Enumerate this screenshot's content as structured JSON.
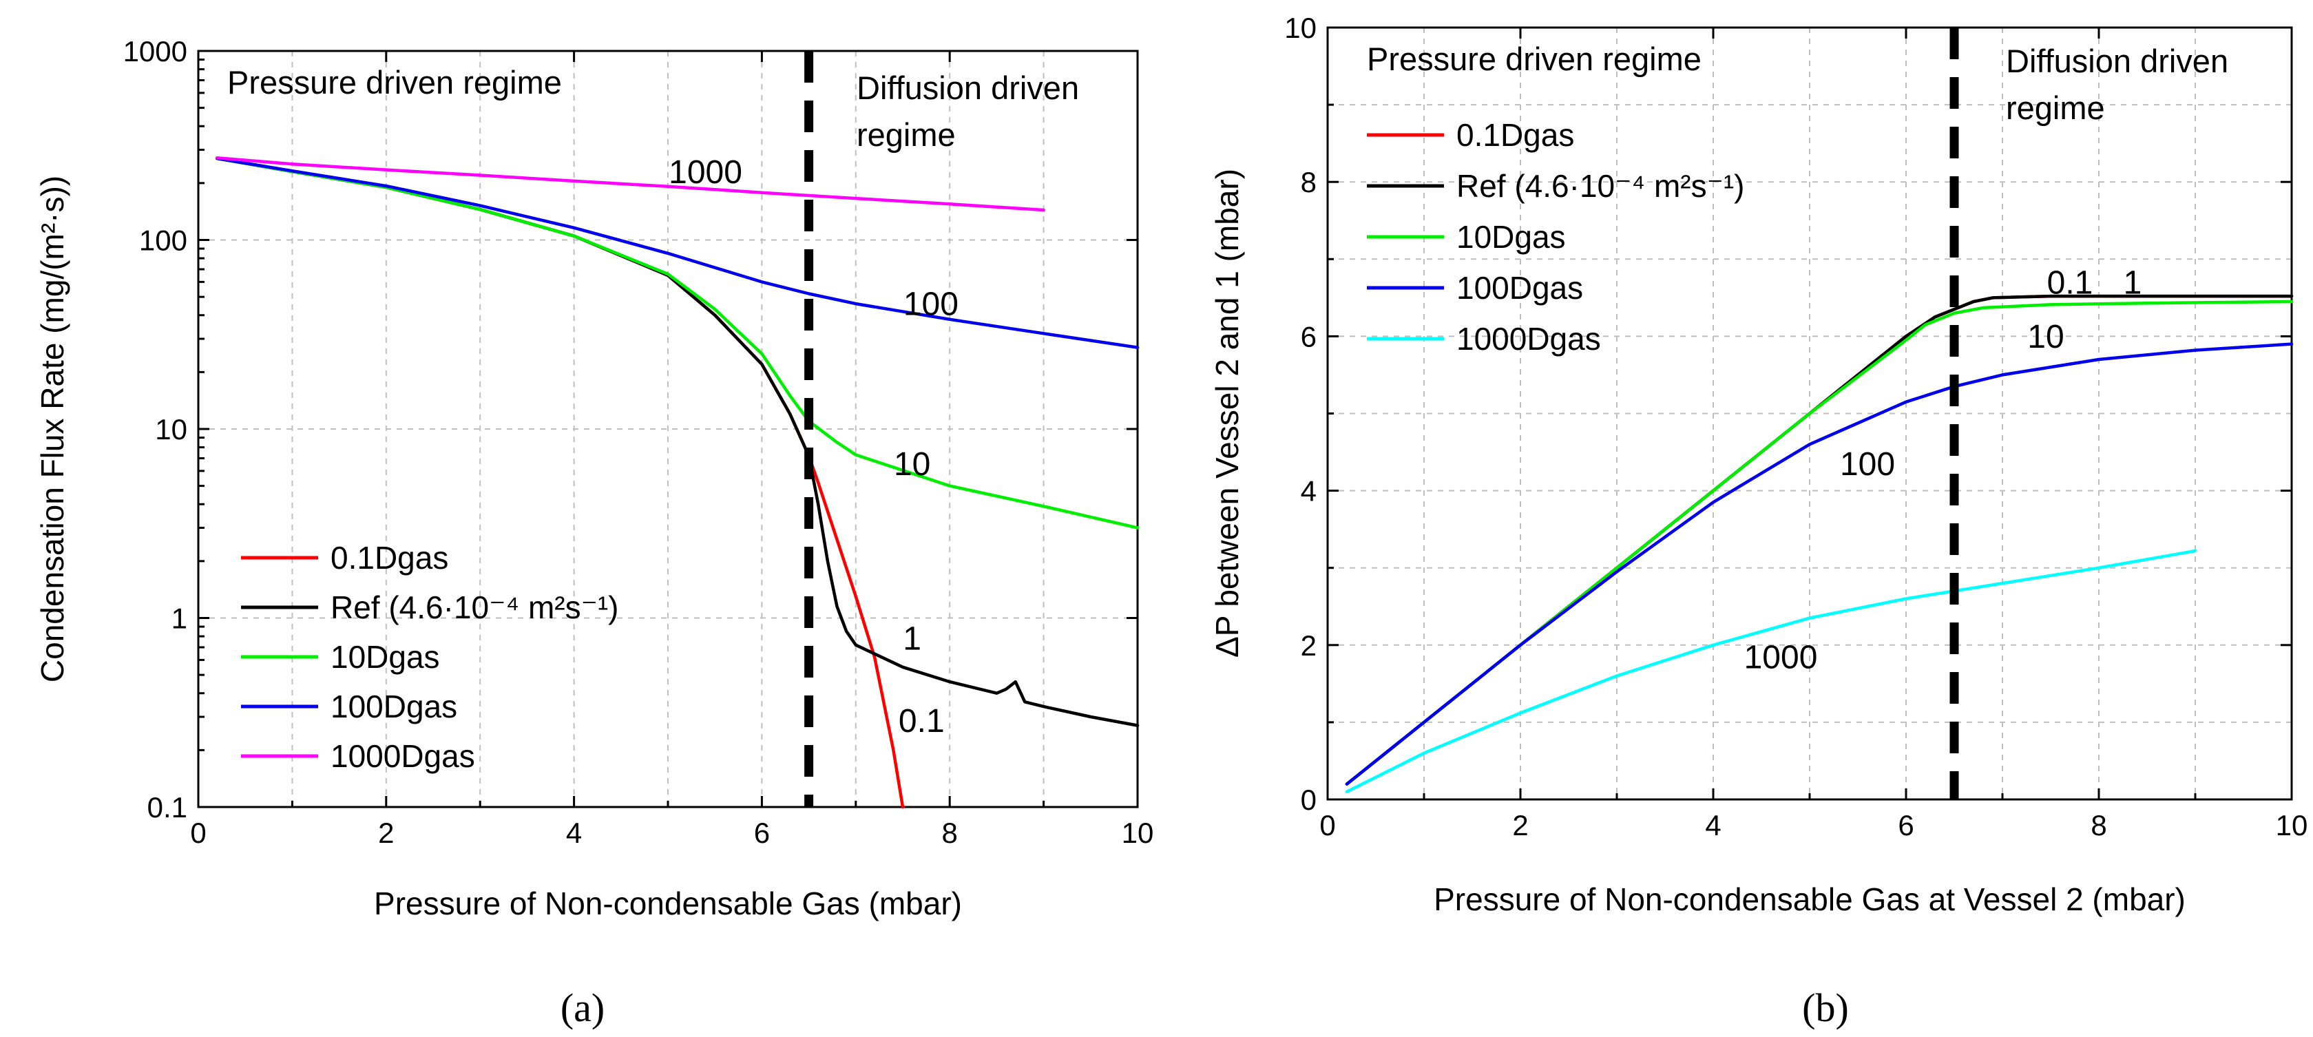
{
  "chart_data": [
    {
      "type": "line",
      "panel_label": "(a)",
      "xlabel": "Pressure of Non-condensable Gas (mbar)",
      "ylabel": "Condensation Flux Rate (mg/(m²·s))",
      "xlim": [
        0,
        10
      ],
      "ylim": [
        0.1,
        1000
      ],
      "yscale": "log",
      "x_ticks": [
        "0",
        "2",
        "4",
        "6",
        "8",
        "10"
      ],
      "y_ticks": [
        "0.1",
        "1",
        "10",
        "100",
        "1000"
      ],
      "grid": true,
      "divider_x": 6.5,
      "regime_left": "Pressure driven regime",
      "regime_right_line1": "Diffusion driven",
      "regime_right_line2": "regime",
      "legend_position": "bottom-left",
      "series": [
        {
          "name": "0.1Dgas",
          "color": "#ff0000",
          "points": [
            [
              0.2,
              270
            ],
            [
              1,
              230
            ],
            [
              2,
              190
            ],
            [
              3,
              145
            ],
            [
              4,
              105
            ],
            [
              5,
              65
            ],
            [
              5.5,
              40
            ],
            [
              6,
              22
            ],
            [
              6.3,
              12
            ],
            [
              6.5,
              7.2
            ],
            [
              6.6,
              5.2
            ],
            [
              6.8,
              2.6
            ],
            [
              7.0,
              1.3
            ],
            [
              7.2,
              0.62
            ],
            [
              7.4,
              0.2
            ],
            [
              7.5,
              0.1
            ]
          ]
        },
        {
          "name": "Ref (4.6·10⁻⁴ m²s⁻¹)",
          "color": "#000000",
          "points": [
            [
              0.2,
              270
            ],
            [
              1,
              230
            ],
            [
              2,
              190
            ],
            [
              3,
              145
            ],
            [
              4,
              105
            ],
            [
              5,
              65
            ],
            [
              5.5,
              40
            ],
            [
              6,
              22
            ],
            [
              6.3,
              12
            ],
            [
              6.5,
              7.2
            ],
            [
              6.6,
              4
            ],
            [
              6.7,
              2
            ],
            [
              6.8,
              1.15
            ],
            [
              6.9,
              0.85
            ],
            [
              7.0,
              0.72
            ],
            [
              7.5,
              0.55
            ],
            [
              8.0,
              0.46
            ],
            [
              8.5,
              0.4
            ],
            [
              8.6,
              0.42
            ],
            [
              8.7,
              0.46
            ],
            [
              8.8,
              0.36
            ],
            [
              9.0,
              0.34
            ],
            [
              9.5,
              0.3
            ],
            [
              10,
              0.27
            ]
          ]
        },
        {
          "name": "10Dgas",
          "color": "#00ee00",
          "points": [
            [
              0.2,
              270
            ],
            [
              1,
              230
            ],
            [
              2,
              190
            ],
            [
              3,
              145
            ],
            [
              4,
              105
            ],
            [
              5,
              66
            ],
            [
              5.5,
              43
            ],
            [
              6,
              25
            ],
            [
              6.3,
              15
            ],
            [
              6.5,
              11
            ],
            [
              6.8,
              8.5
            ],
            [
              7.0,
              7.3
            ],
            [
              8,
              5.0
            ],
            [
              9,
              3.9
            ],
            [
              10,
              3.0
            ]
          ]
        },
        {
          "name": "100Dgas",
          "color": "#0000ee",
          "points": [
            [
              0.2,
              270
            ],
            [
              1,
              232
            ],
            [
              2,
              193
            ],
            [
              3,
              152
            ],
            [
              4,
              116
            ],
            [
              5,
              85
            ],
            [
              6,
              60
            ],
            [
              6.5,
              52
            ],
            [
              7,
              46
            ],
            [
              8,
              38
            ],
            [
              9,
              32
            ],
            [
              10,
              27
            ]
          ]
        },
        {
          "name": "1000Dgas",
          "color": "#ff00ff",
          "points": [
            [
              0.2,
              272
            ],
            [
              1,
              252
            ],
            [
              2,
              235
            ],
            [
              3,
              220
            ],
            [
              4,
              205
            ],
            [
              5,
              192
            ],
            [
              6,
              178
            ],
            [
              7,
              166
            ],
            [
              8,
              155
            ],
            [
              9,
              144
            ]
          ]
        }
      ],
      "annotations": [
        {
          "text": "1000",
          "x": 5.4,
          "y": 200
        },
        {
          "text": "100",
          "x": 7.8,
          "y": 40
        },
        {
          "text": "10",
          "x": 7.6,
          "y": 5.7
        },
        {
          "text": "1",
          "x": 7.6,
          "y": 0.68
        },
        {
          "text": "0.1",
          "x": 7.7,
          "y": 0.25
        }
      ]
    },
    {
      "type": "line",
      "panel_label": "(b)",
      "xlabel": "Pressure of Non-condensable Gas at Vessel 2 (mbar)",
      "ylabel": "ΔP between Vessel 2 and 1 (mbar)",
      "xlim": [
        0,
        10
      ],
      "ylim": [
        0,
        10
      ],
      "yscale": "linear",
      "x_ticks": [
        "0",
        "2",
        "4",
        "6",
        "8",
        "10"
      ],
      "y_ticks": [
        "0",
        "2",
        "4",
        "6",
        "8",
        "10"
      ],
      "grid": true,
      "divider_x": 6.5,
      "regime_left": "Pressure driven regime",
      "regime_right_line1": "Diffusion driven",
      "regime_right_line2": "regime",
      "legend_position": "top-left",
      "series": [
        {
          "name": "0.1Dgas",
          "color": "#ff0000",
          "points": [
            [
              0.2,
              0.2
            ],
            [
              1,
              1
            ],
            [
              2,
              2
            ],
            [
              3,
              3
            ],
            [
              4,
              4
            ],
            [
              5,
              5
            ],
            [
              6,
              6
            ],
            [
              6.3,
              6.25
            ],
            [
              6.5,
              6.35
            ],
            [
              6.7,
              6.45
            ],
            [
              6.9,
              6.5
            ],
            [
              7.5,
              6.52
            ],
            [
              8.5,
              6.52
            ],
            [
              10,
              6.52
            ]
          ]
        },
        {
          "name": "Ref (4.6·10⁻⁴ m²s⁻¹)",
          "color": "#000000",
          "points": [
            [
              0.2,
              0.2
            ],
            [
              1,
              1
            ],
            [
              2,
              2
            ],
            [
              3,
              3
            ],
            [
              4,
              4
            ],
            [
              5,
              5
            ],
            [
              6,
              6
            ],
            [
              6.3,
              6.25
            ],
            [
              6.5,
              6.35
            ],
            [
              6.7,
              6.45
            ],
            [
              6.9,
              6.5
            ],
            [
              7.5,
              6.52
            ],
            [
              8.5,
              6.52
            ],
            [
              10,
              6.52
            ]
          ]
        },
        {
          "name": "10Dgas",
          "color": "#00ee00",
          "points": [
            [
              0.2,
              0.2
            ],
            [
              1,
              1
            ],
            [
              2,
              2
            ],
            [
              3,
              3
            ],
            [
              4,
              4
            ],
            [
              5,
              5
            ],
            [
              6,
              5.95
            ],
            [
              6.2,
              6.15
            ],
            [
              6.5,
              6.3
            ],
            [
              6.8,
              6.37
            ],
            [
              7.5,
              6.41
            ],
            [
              8.5,
              6.43
            ],
            [
              10,
              6.45
            ]
          ]
        },
        {
          "name": "100Dgas",
          "color": "#0000ee",
          "points": [
            [
              0.2,
              0.2
            ],
            [
              1,
              1
            ],
            [
              2,
              2
            ],
            [
              3,
              2.95
            ],
            [
              4,
              3.85
            ],
            [
              5,
              4.6
            ],
            [
              6,
              5.15
            ],
            [
              6.5,
              5.35
            ],
            [
              7,
              5.5
            ],
            [
              8,
              5.7
            ],
            [
              9,
              5.82
            ],
            [
              10,
              5.9
            ]
          ]
        },
        {
          "name": "1000Dgas",
          "color": "#00ffff",
          "points": [
            [
              0.2,
              0.1
            ],
            [
              1,
              0.6
            ],
            [
              2,
              1.12
            ],
            [
              3,
              1.6
            ],
            [
              4,
              2.0
            ],
            [
              5,
              2.35
            ],
            [
              6,
              2.6
            ],
            [
              6.5,
              2.7
            ],
            [
              7,
              2.8
            ],
            [
              8,
              3.0
            ],
            [
              9,
              3.22
            ]
          ]
        }
      ],
      "annotations": [
        {
          "text": "0.1",
          "x": 7.7,
          "y": 6.55
        },
        {
          "text": "1",
          "x": 8.35,
          "y": 6.55
        },
        {
          "text": "10",
          "x": 7.45,
          "y": 5.85
        },
        {
          "text": "100",
          "x": 5.6,
          "y": 4.2
        },
        {
          "text": "1000",
          "x": 4.7,
          "y": 1.7
        }
      ]
    }
  ]
}
